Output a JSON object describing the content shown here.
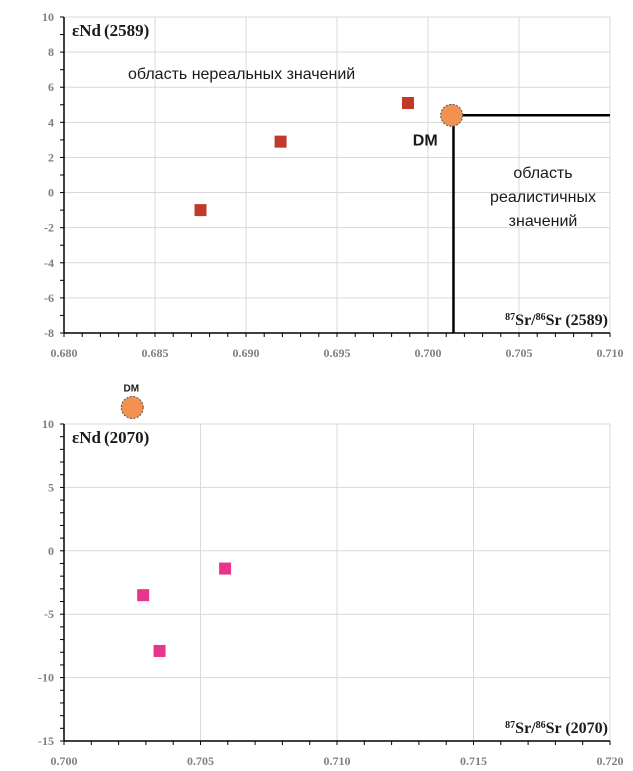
{
  "chart_data": [
    {
      "type": "scatter",
      "title": "",
      "ylabel_prefix": "εNd",
      "ylabel_suffix": "(2589)",
      "xlabel_sup1": "87",
      "xlabel_sr1": "Sr/",
      "xlabel_sup2": "86",
      "xlabel_sr2": "Sr",
      "xlabel_suffix": "(2589)",
      "xlim": [
        0.68,
        0.71
      ],
      "ylim": [
        -8,
        10
      ],
      "x_ticks": [
        0.68,
        0.685,
        0.69,
        0.695,
        0.7,
        0.705,
        0.71
      ],
      "x_tick_labels": [
        "0.680",
        "0.685",
        "0.690",
        "0.695",
        "0.700",
        "0.705",
        "0.710"
      ],
      "y_ticks": [
        -8,
        -6,
        -4,
        -2,
        0,
        2,
        4,
        6,
        8,
        10
      ],
      "y_tick_labels": [
        "-8",
        "-6",
        "-4",
        "-2",
        "0",
        "2",
        "4",
        "6",
        "8",
        "10"
      ],
      "grid": true,
      "series": [
        {
          "marker": "square",
          "color": "#c0392b",
          "points": [
            {
              "x": 0.6875,
              "y": -1.0
            },
            {
              "x": 0.6919,
              "y": 2.9
            },
            {
              "x": 0.6989,
              "y": 5.1
            }
          ]
        }
      ],
      "dm_point": {
        "x": 0.7013,
        "y": 4.4,
        "label": "DM",
        "color": "#f39250"
      },
      "boundary_lines": {
        "x": 0.7014,
        "y": 4.4
      },
      "annotations": {
        "unreal": "область нереальных значений",
        "realistic_lines": [
          "область",
          "реалистичных",
          "значений"
        ]
      }
    },
    {
      "type": "scatter",
      "title": "",
      "ylabel_prefix": "εNd",
      "ylabel_suffix": "(2070)",
      "xlabel_sup1": "87",
      "xlabel_sr1": "Sr/",
      "xlabel_sup2": "86",
      "xlabel_sr2": "Sr",
      "xlabel_suffix": "(2070)",
      "xlim": [
        0.7,
        0.72
      ],
      "ylim": [
        -15,
        10
      ],
      "x_ticks": [
        0.7,
        0.705,
        0.71,
        0.715,
        0.72
      ],
      "x_tick_labels": [
        "0.700",
        "0.705",
        "0.710",
        "0.715",
        "0.720"
      ],
      "y_ticks": [
        -15,
        -10,
        -5,
        0,
        5,
        10
      ],
      "y_tick_labels": [
        "-15",
        "-10",
        "-5",
        "0",
        "5",
        "10"
      ],
      "grid": true,
      "series": [
        {
          "marker": "square",
          "color": "#e8348a",
          "points": [
            {
              "x": 0.7059,
              "y": -1.4
            },
            {
              "x": 0.7029,
              "y": -3.5
            },
            {
              "x": 0.7035,
              "y": -7.9
            }
          ]
        }
      ],
      "dm_point": {
        "x": 0.7025,
        "y": 11.3,
        "label": "DM",
        "color": "#f39250"
      }
    }
  ]
}
